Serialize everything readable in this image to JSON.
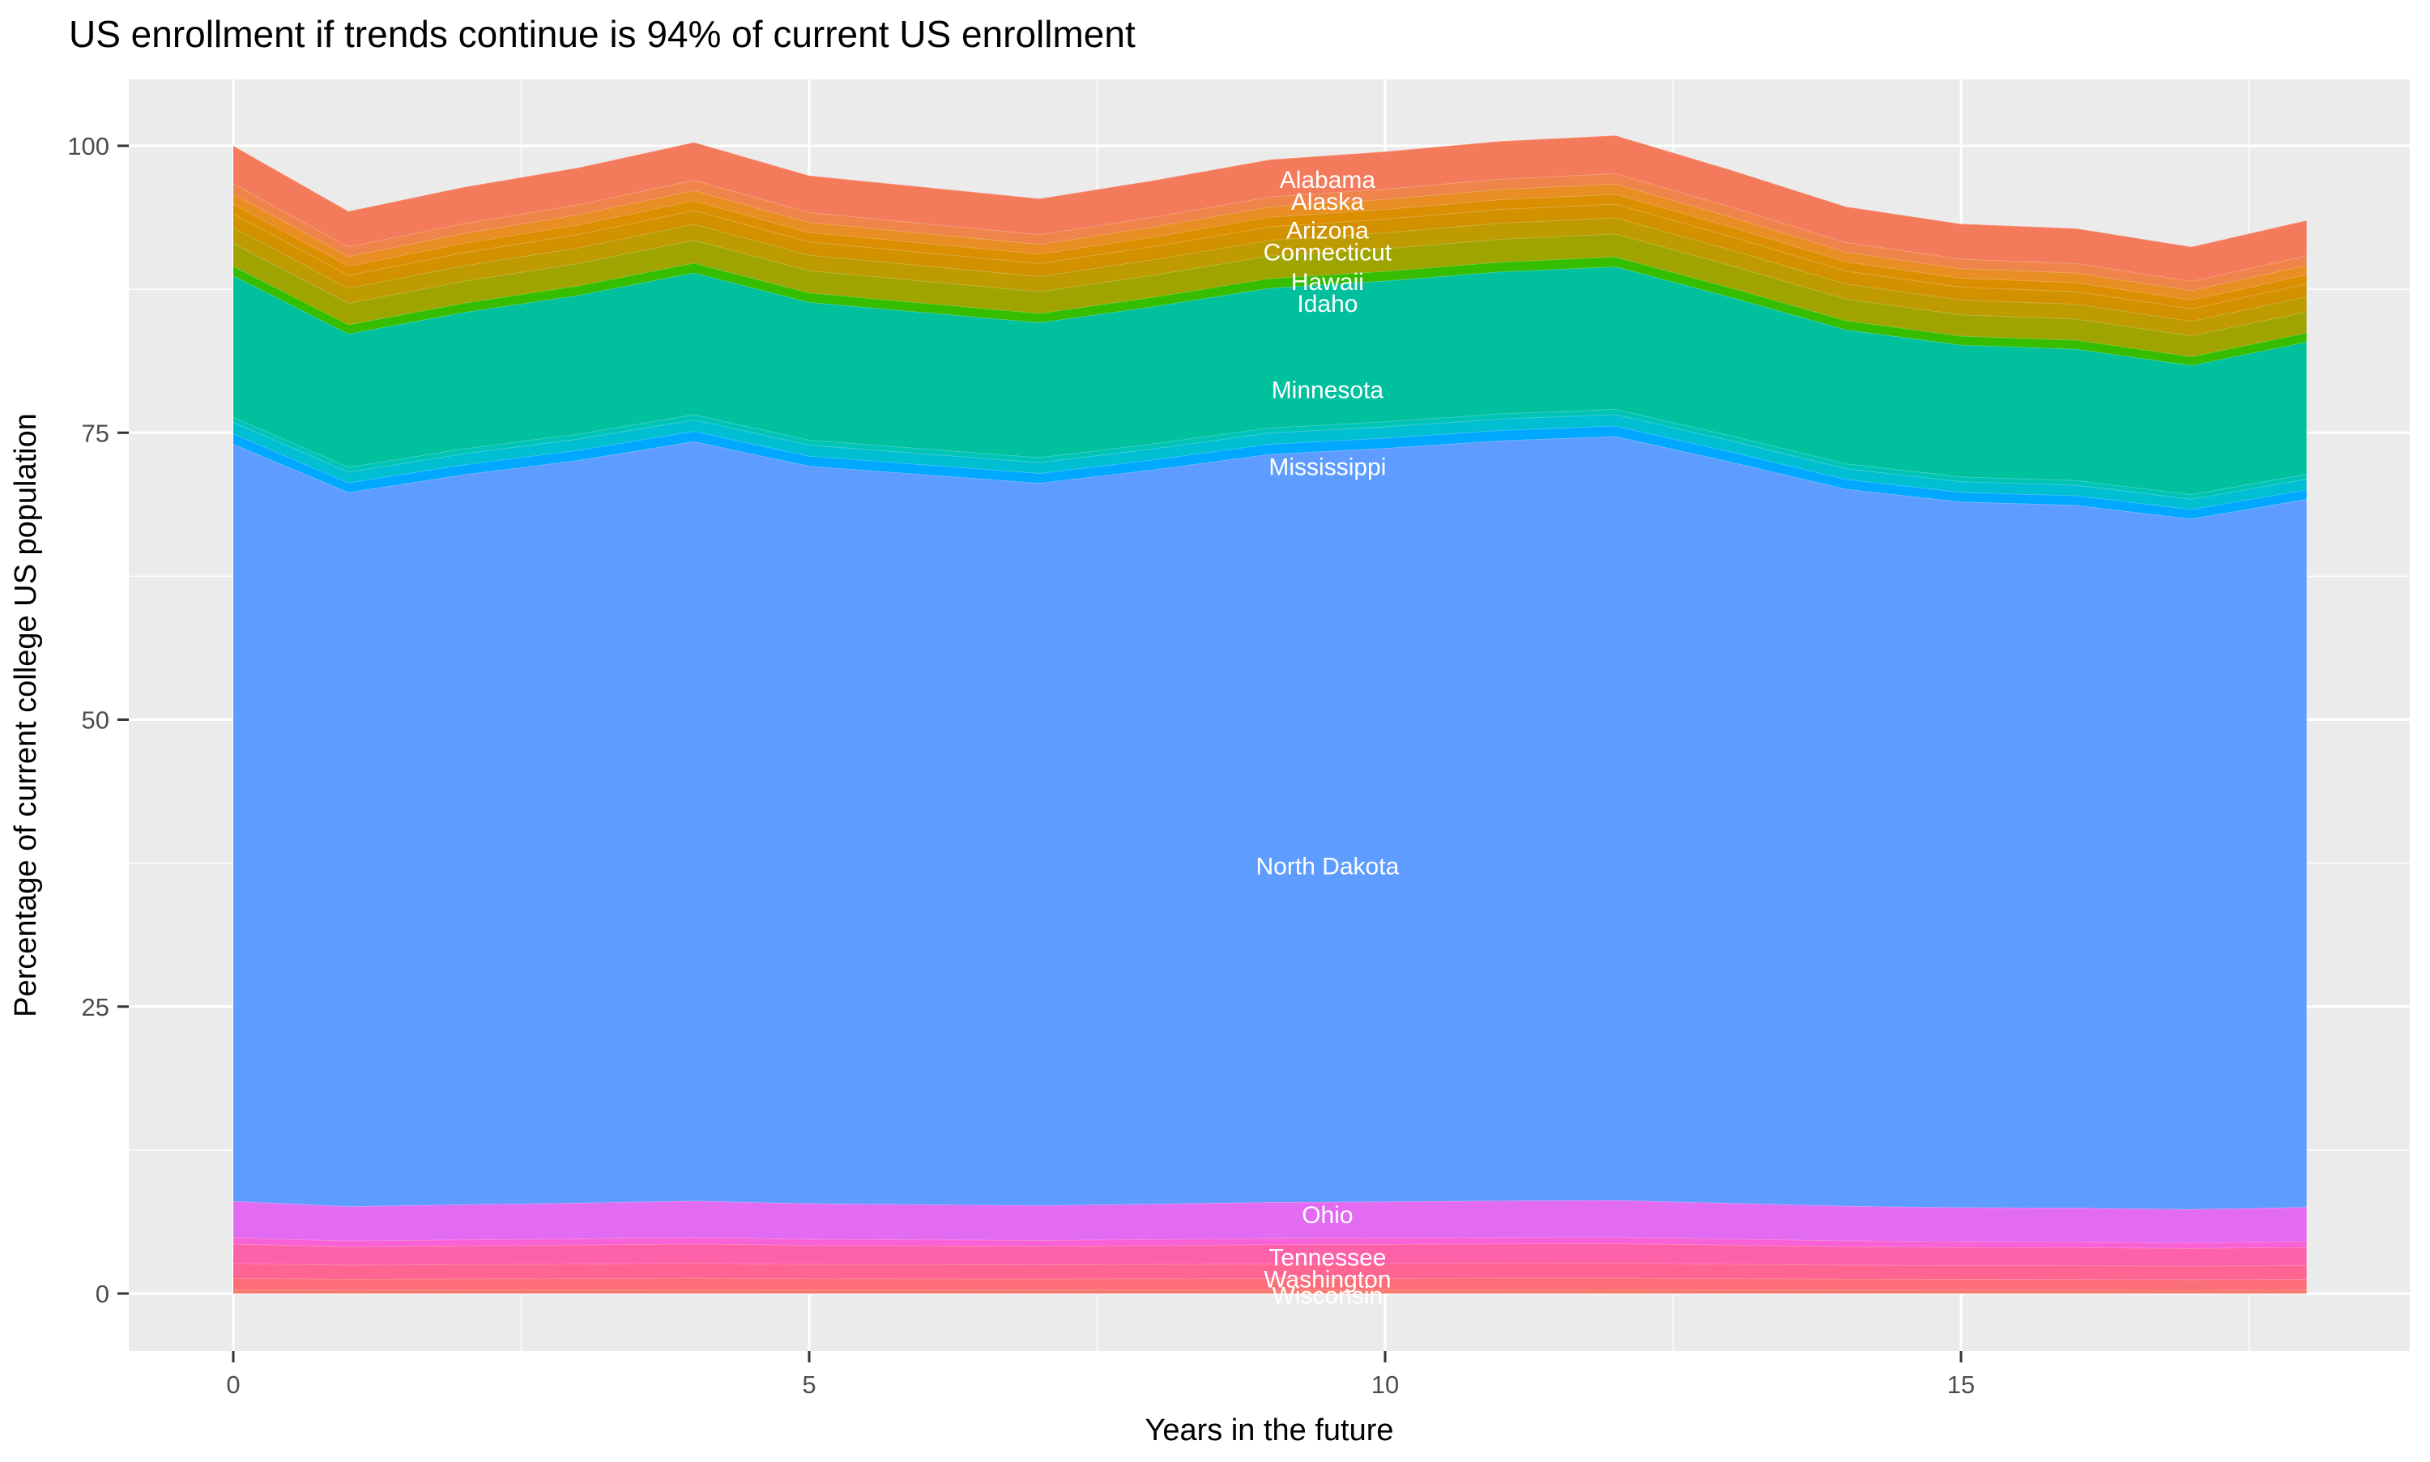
{
  "title": "US enrollment if trends continue is 94% of current US enrollment",
  "x_axis": {
    "label": "Years in the future",
    "ticks": [
      0,
      5,
      10,
      15
    ],
    "minor_ticks": [
      2.5,
      7.5,
      12.5,
      17.5
    ],
    "range": [
      0,
      18
    ]
  },
  "y_axis": {
    "label": "Percentage of current college US population",
    "ticks": [
      0,
      25,
      50,
      75,
      100
    ],
    "minor_ticks": [
      12.5,
      37.5,
      62.5,
      87.5
    ],
    "range": [
      0,
      105
    ]
  },
  "theme": {
    "panel_bg": "#EBEBEB",
    "grid_color": "#FFFFFF",
    "tick_mark_color": "#333333",
    "tick_text_color": "#4D4D4D",
    "title_color": "#000000",
    "band_label_color": "#FFFFFF",
    "band_separator": "rgba(255,255,255,0.25)"
  },
  "chart_data": {
    "type": "area",
    "stacked": true,
    "x": [
      0,
      1,
      2,
      3,
      4,
      5,
      6,
      7,
      8,
      9,
      10,
      11,
      12,
      13,
      14,
      15,
      16,
      17,
      18
    ],
    "stack_top_percent": [
      100.0,
      94.3,
      96.4,
      98.1,
      100.3,
      97.4,
      96.4,
      95.4,
      97.0,
      98.8,
      99.5,
      100.4,
      100.9,
      97.9,
      94.7,
      93.2,
      92.8,
      91.2,
      93.5
    ],
    "label_x_year": 9.5,
    "series": [
      {
        "name": "unlabeled-band-1",
        "color": "#F8796B",
        "share_percent": 0.35,
        "label": null
      },
      {
        "name": "Wisconsin",
        "color": "#FB6E79",
        "share_percent": 1.0,
        "label": "Wisconsin",
        "label_y_percent": -0.2
      },
      {
        "name": "Washington",
        "color": "#FE6593",
        "share_percent": 1.3,
        "label": "Washington",
        "label_y_percent": 1.2
      },
      {
        "name": "Tennessee",
        "color": "#FC61A9",
        "share_percent": 1.7,
        "label": "Tennessee",
        "label_y_percent": 3.1
      },
      {
        "name": "unlabeled-band-2",
        "color": "#F862D6",
        "share_percent": 0.55,
        "label": null
      },
      {
        "name": "Ohio",
        "color": "#E26BF2",
        "share_percent": 3.2,
        "label": "Ohio",
        "label_y_percent": 6.8
      },
      {
        "name": "North Dakota",
        "color": "#5E9DFF",
        "share_percent": 66.4,
        "label": "North Dakota",
        "label_y_percent": 37.2
      },
      {
        "name": "unlabeled-band-3",
        "color": "#00A8FF",
        "share_percent": 0.9,
        "label": null
      },
      {
        "name": "Mississippi",
        "color": "#00BFD2",
        "share_percent": 1.0,
        "label": "Mississippi",
        "label_y_percent": 72.0
      },
      {
        "name": "unlabeled-band-4",
        "color": "#00C4B6",
        "share_percent": 0.45,
        "label": null
      },
      {
        "name": "Minnesota",
        "color": "#00C09E",
        "share_percent": 12.4,
        "label": "Minnesota",
        "label_y_percent": 78.7
      },
      {
        "name": "Idaho",
        "color": "#35BD00",
        "share_percent": 0.85,
        "label": "Idaho",
        "label_y_percent": 86.2
      },
      {
        "name": "Hawaii",
        "color": "#9FA400",
        "share_percent": 2.0,
        "label": "Hawaii",
        "label_y_percent": 88.1
      },
      {
        "name": "unlabeled-band-5",
        "color": "#BE9B00",
        "share_percent": 1.4,
        "label": null
      },
      {
        "name": "Connecticut",
        "color": "#D29200",
        "share_percent": 1.2,
        "label": "Connecticut",
        "label_y_percent": 90.7
      },
      {
        "name": "unlabeled-band-6",
        "color": "#DB8E00",
        "share_percent": 0.85,
        "label": null
      },
      {
        "name": "Arizona",
        "color": "#E88E23",
        "share_percent": 0.9,
        "label": "Arizona",
        "label_y_percent": 92.6
      },
      {
        "name": "Alaska",
        "color": "#F0854C",
        "share_percent": 0.9,
        "label": "Alaska",
        "label_y_percent": 95.1
      },
      {
        "name": "Alabama",
        "color": "#F47A5C",
        "share_percent": 3.3,
        "label": "Alabama",
        "label_y_percent": 97.0
      }
    ]
  }
}
